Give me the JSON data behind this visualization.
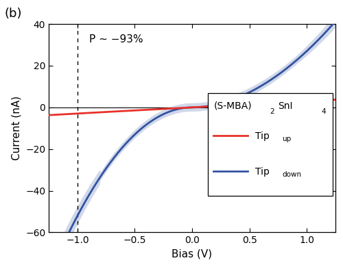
{
  "x_min": -1.25,
  "x_max": 1.25,
  "y_min": -60,
  "y_max": 40,
  "x_ticks": [
    -1.0,
    -0.5,
    0.0,
    0.5,
    1.0
  ],
  "y_ticks": [
    -60,
    -40,
    -20,
    0,
    20,
    40
  ],
  "xlabel": "Bias (V)",
  "ylabel": "Current (nA)",
  "panel_label": "(b)",
  "annotation": "P ~ −93%",
  "dashed_line_x": -1.0,
  "tip_up_color": "#e8312a",
  "tip_down_color": "#3352a0",
  "tip_down_band_color": "#aab8d8",
  "background_color": "#ffffff",
  "figwidth": 5.0,
  "figheight": 3.9,
  "dpi": 100
}
